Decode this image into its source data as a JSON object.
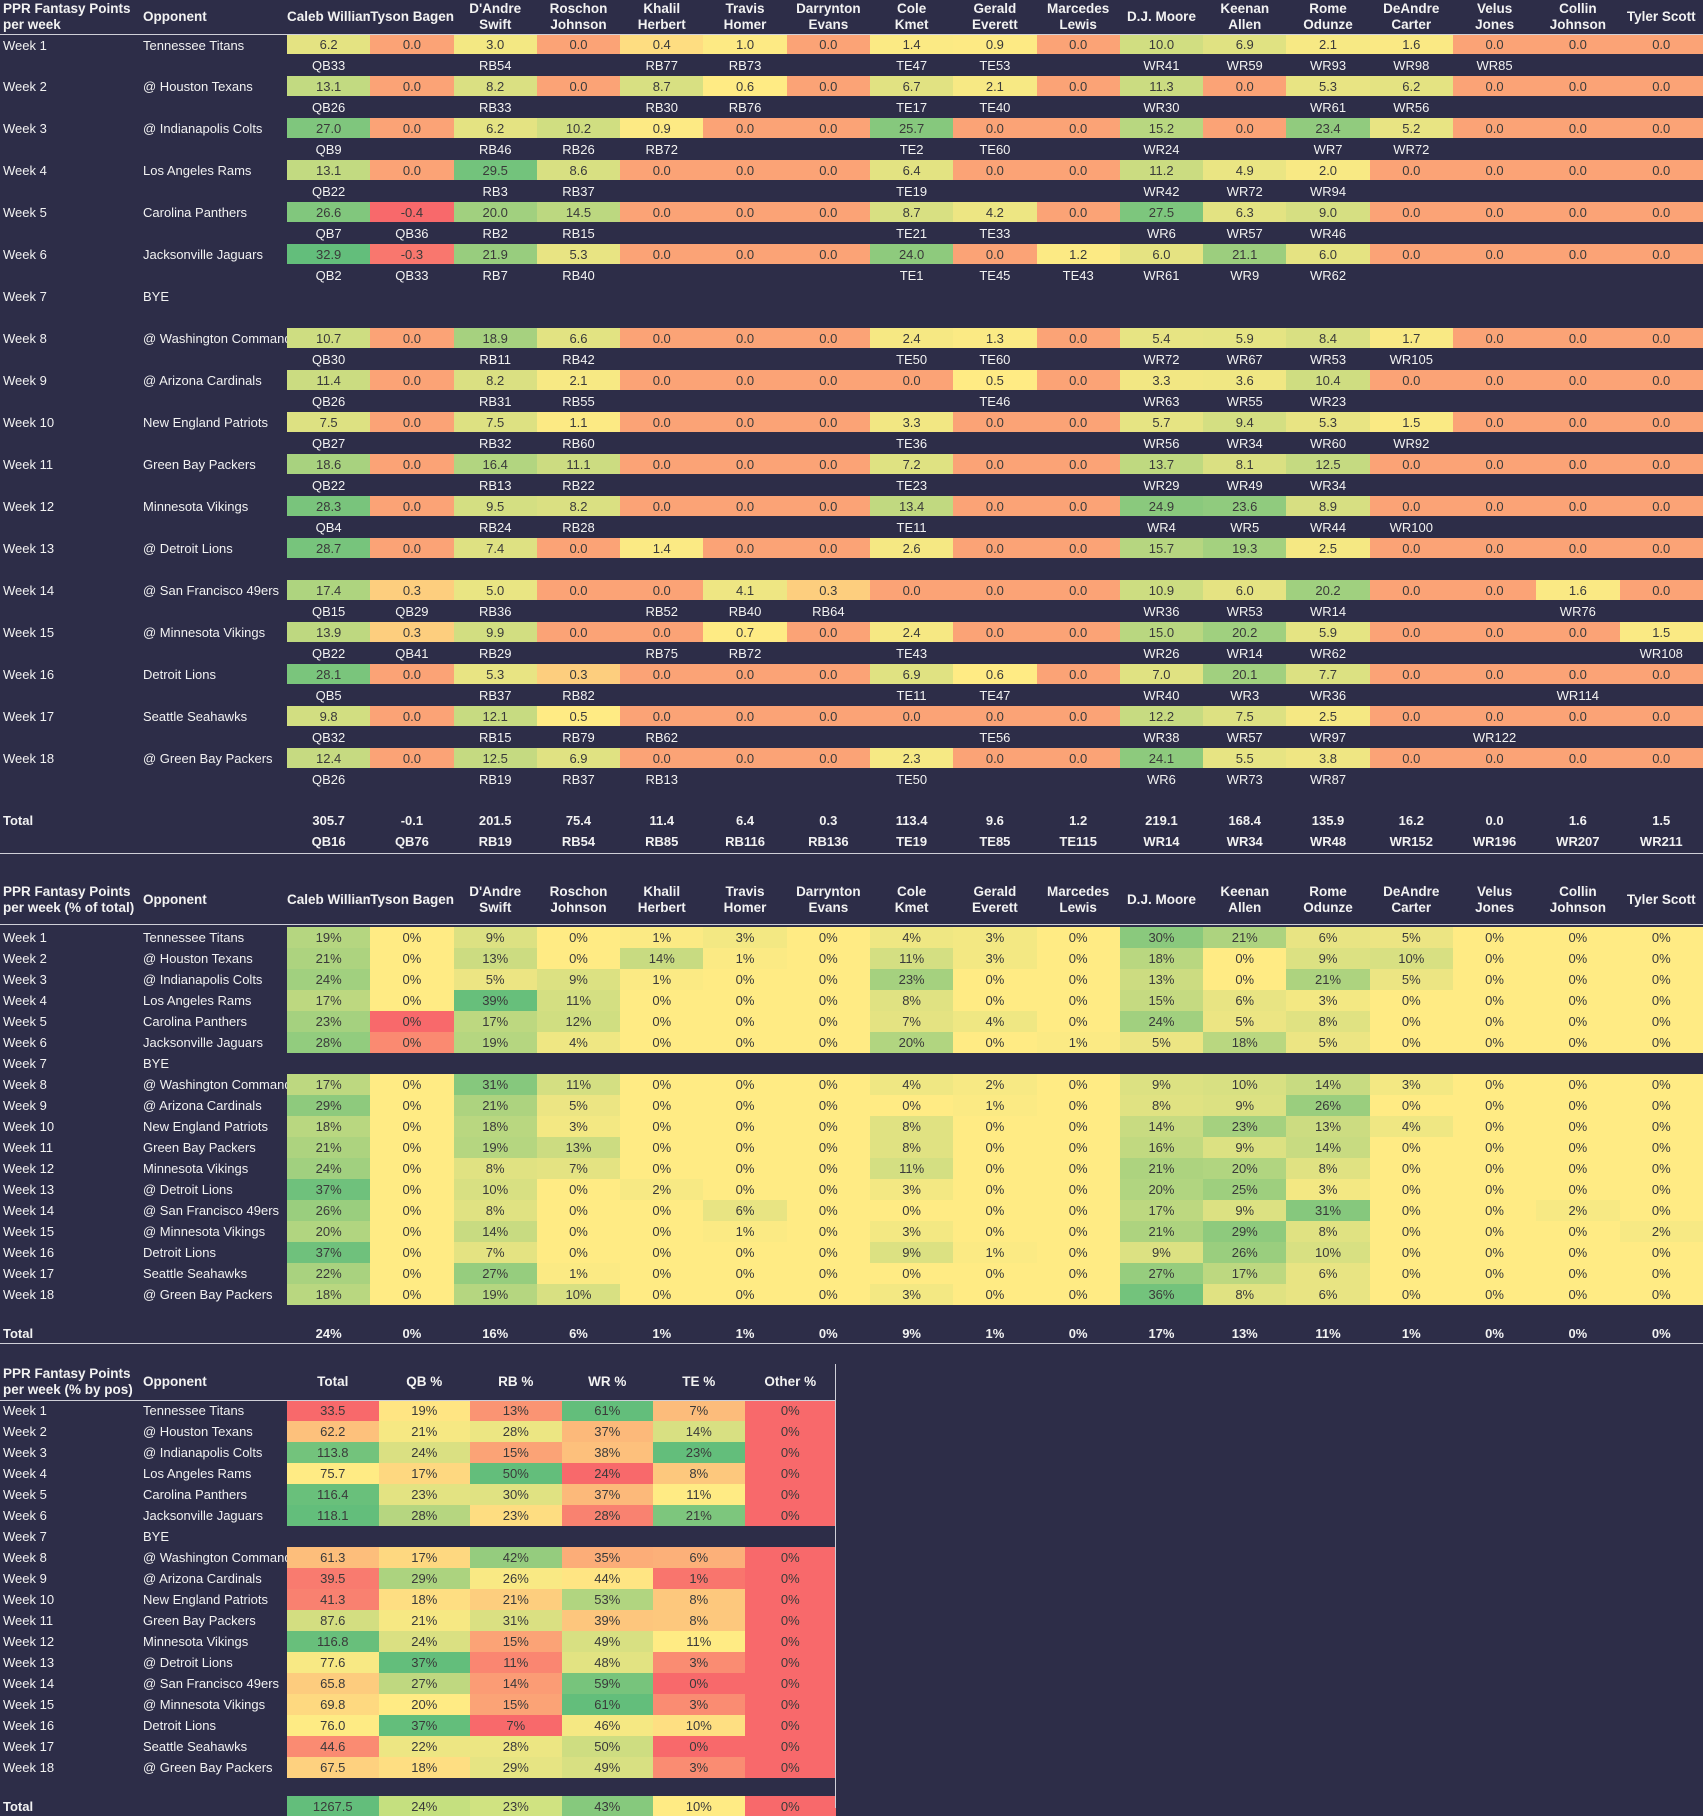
{
  "players": [
    "Caleb Williams",
    "Tyson Bagent",
    "D'Andre Swift",
    "Roschon Johnson",
    "Khalil Herbert",
    "Travis Homer",
    "Darrynton Evans",
    "Cole Kmet",
    "Gerald Everett",
    "Marcedes Lewis",
    "D.J. Moore",
    "Keenan Allen",
    "Rome Odunze",
    "DeAndre Carter",
    "Velus Jones",
    "Collin Johnson",
    "Tyler Scott"
  ],
  "player_header_lines": [
    [
      "Caleb Williams",
      ""
    ],
    [
      "Tyson Bagent",
      ""
    ],
    [
      "D'Andre",
      "Swift"
    ],
    [
      "Roschon",
      "Johnson"
    ],
    [
      "Khalil",
      "Herbert"
    ],
    [
      "Travis",
      "Homer"
    ],
    [
      "Darrynton",
      "Evans"
    ],
    [
      "Cole",
      "Kmet"
    ],
    [
      "Gerald",
      "Everett"
    ],
    [
      "Marcedes",
      "Lewis"
    ],
    [
      "D.J. Moore",
      ""
    ],
    [
      "Keenan",
      "Allen"
    ],
    [
      "Rome",
      "Odunze"
    ],
    [
      "DeAndre",
      "Carter"
    ],
    [
      "Velus",
      "Jones"
    ],
    [
      "Collin",
      "Johnson"
    ],
    [
      "Tyler Scott",
      ""
    ]
  ],
  "opponent_label": "Opponent",
  "weeks": [
    "Week 1",
    "Week 2",
    "Week 3",
    "Week 4",
    "Week 5",
    "Week 6",
    "Week 7",
    "Week 8",
    "Week 9",
    "Week 10",
    "Week 11",
    "Week 12",
    "Week 13",
    "Week 14",
    "Week 15",
    "Week 16",
    "Week 17",
    "Week 18"
  ],
  "opponents": [
    "Tennessee Titans",
    "@ Houston Texans",
    "@ Indianapolis Colts",
    "Los Angeles Rams",
    "Carolina Panthers",
    "Jacksonville Jaguars",
    "BYE",
    "@ Washington Commanders",
    "@ Arizona Cardinals",
    "New England Patriots",
    "Green Bay Packers",
    "Minnesota Vikings",
    "@ Detroit Lions",
    "@ San Francisco 49ers",
    "@ Minnesota Vikings",
    "Detroit Lions",
    "Seattle Seahawks",
    "@ Green Bay Packers"
  ],
  "total_label": "Total",
  "table1": {
    "title_lines": [
      "PPR Fantasy Points",
      "per week"
    ],
    "points": [
      [
        "6.2",
        "0.0",
        "3.0",
        "0.0",
        "0.4",
        "1.0",
        "0.0",
        "1.4",
        "0.9",
        "0.0",
        "10.0",
        "6.9",
        "2.1",
        "1.6",
        "0.0",
        "0.0",
        "0.0"
      ],
      [
        "13.1",
        "0.0",
        "8.2",
        "0.0",
        "8.7",
        "0.6",
        "0.0",
        "6.7",
        "2.1",
        "0.0",
        "11.3",
        "0.0",
        "5.3",
        "6.2",
        "0.0",
        "0.0",
        "0.0"
      ],
      [
        "27.0",
        "0.0",
        "6.2",
        "10.2",
        "0.9",
        "0.0",
        "0.0",
        "25.7",
        "0.0",
        "0.0",
        "15.2",
        "0.0",
        "23.4",
        "5.2",
        "0.0",
        "0.0",
        "0.0"
      ],
      [
        "13.1",
        "0.0",
        "29.5",
        "8.6",
        "0.0",
        "0.0",
        "0.0",
        "6.4",
        "0.0",
        "0.0",
        "11.2",
        "4.9",
        "2.0",
        "0.0",
        "0.0",
        "0.0",
        "0.0"
      ],
      [
        "26.6",
        "-0.4",
        "20.0",
        "14.5",
        "0.0",
        "0.0",
        "0.0",
        "8.7",
        "4.2",
        "0.0",
        "27.5",
        "6.3",
        "9.0",
        "0.0",
        "0.0",
        "0.0",
        "0.0"
      ],
      [
        "32.9",
        "-0.3",
        "21.9",
        "5.3",
        "0.0",
        "0.0",
        "0.0",
        "24.0",
        "0.0",
        "1.2",
        "6.0",
        "21.1",
        "6.0",
        "0.0",
        "0.0",
        "0.0",
        "0.0"
      ],
      [
        "",
        "",
        "",
        "",
        "",
        "",
        "",
        "",
        "",
        "",
        "",
        "",
        "",
        "",
        "",
        "",
        ""
      ],
      [
        "10.7",
        "0.0",
        "18.9",
        "6.6",
        "0.0",
        "0.0",
        "0.0",
        "2.4",
        "1.3",
        "0.0",
        "5.4",
        "5.9",
        "8.4",
        "1.7",
        "0.0",
        "0.0",
        "0.0"
      ],
      [
        "11.4",
        "0.0",
        "8.2",
        "2.1",
        "0.0",
        "0.0",
        "0.0",
        "0.0",
        "0.5",
        "0.0",
        "3.3",
        "3.6",
        "10.4",
        "0.0",
        "0.0",
        "0.0",
        "0.0"
      ],
      [
        "7.5",
        "0.0",
        "7.5",
        "1.1",
        "0.0",
        "0.0",
        "0.0",
        "3.3",
        "0.0",
        "0.0",
        "5.7",
        "9.4",
        "5.3",
        "1.5",
        "0.0",
        "0.0",
        "0.0"
      ],
      [
        "18.6",
        "0.0",
        "16.4",
        "11.1",
        "0.0",
        "0.0",
        "0.0",
        "7.2",
        "0.0",
        "0.0",
        "13.7",
        "8.1",
        "12.5",
        "0.0",
        "0.0",
        "0.0",
        "0.0"
      ],
      [
        "28.3",
        "0.0",
        "9.5",
        "8.2",
        "0.0",
        "0.0",
        "0.0",
        "13.4",
        "0.0",
        "0.0",
        "24.9",
        "23.6",
        "8.9",
        "0.0",
        "0.0",
        "0.0",
        "0.0"
      ],
      [
        "28.7",
        "0.0",
        "7.4",
        "0.0",
        "1.4",
        "0.0",
        "0.0",
        "2.6",
        "0.0",
        "0.0",
        "15.7",
        "19.3",
        "2.5",
        "0.0",
        "0.0",
        "0.0",
        "0.0"
      ],
      [
        "17.4",
        "0.3",
        "5.0",
        "0.0",
        "0.0",
        "4.1",
        "0.3",
        "0.0",
        "0.0",
        "0.0",
        "10.9",
        "6.0",
        "20.2",
        "0.0",
        "0.0",
        "1.6",
        "0.0"
      ],
      [
        "13.9",
        "0.3",
        "9.9",
        "0.0",
        "0.0",
        "0.7",
        "0.0",
        "2.4",
        "0.0",
        "0.0",
        "15.0",
        "20.2",
        "5.9",
        "0.0",
        "0.0",
        "0.0",
        "1.5"
      ],
      [
        "28.1",
        "0.0",
        "5.3",
        "0.3",
        "0.0",
        "0.0",
        "0.0",
        "6.9",
        "0.6",
        "0.0",
        "7.0",
        "20.1",
        "7.7",
        "0.0",
        "0.0",
        "0.0",
        "0.0"
      ],
      [
        "9.8",
        "0.0",
        "12.1",
        "0.5",
        "0.0",
        "0.0",
        "0.0",
        "0.0",
        "0.0",
        "0.0",
        "12.2",
        "7.5",
        "2.5",
        "0.0",
        "0.0",
        "0.0",
        "0.0"
      ],
      [
        "12.4",
        "0.0",
        "12.5",
        "6.9",
        "0.0",
        "0.0",
        "0.0",
        "2.3",
        "0.0",
        "0.0",
        "24.1",
        "5.5",
        "3.8",
        "0.0",
        "0.0",
        "0.0",
        "0.0"
      ]
    ],
    "ranks": [
      [
        "QB33",
        "",
        "RB54",
        "",
        "RB77",
        "RB73",
        "",
        "TE47",
        "TE53",
        "",
        "WR41",
        "WR59",
        "WR93",
        "WR98",
        "WR85",
        "",
        ""
      ],
      [
        "QB26",
        "",
        "RB33",
        "",
        "RB30",
        "RB76",
        "",
        "TE17",
        "TE40",
        "",
        "WR30",
        "",
        "WR61",
        "WR56",
        "",
        "",
        ""
      ],
      [
        "QB9",
        "",
        "RB46",
        "RB26",
        "RB72",
        "",
        "",
        "TE2",
        "TE60",
        "",
        "WR24",
        "",
        "WR7",
        "WR72",
        "",
        "",
        ""
      ],
      [
        "QB22",
        "",
        "RB3",
        "RB37",
        "",
        "",
        "",
        "TE19",
        "",
        "",
        "WR42",
        "WR72",
        "WR94",
        "",
        "",
        "",
        ""
      ],
      [
        "QB7",
        "QB36",
        "RB2",
        "RB15",
        "",
        "",
        "",
        "TE21",
        "TE33",
        "",
        "WR6",
        "WR57",
        "WR46",
        "",
        "",
        "",
        ""
      ],
      [
        "QB2",
        "QB33",
        "RB7",
        "RB40",
        "",
        "",
        "",
        "TE1",
        "TE45",
        "TE43",
        "WR61",
        "WR9",
        "WR62",
        "",
        "",
        "",
        ""
      ],
      [
        "",
        "",
        "",
        "",
        "",
        "",
        "",
        "",
        "",
        "",
        "",
        "",
        "",
        "",
        "",
        "",
        ""
      ],
      [
        "QB30",
        "",
        "RB11",
        "RB42",
        "",
        "",
        "",
        "TE50",
        "TE60",
        "",
        "WR72",
        "WR67",
        "WR53",
        "WR105",
        "",
        "",
        ""
      ],
      [
        "QB26",
        "",
        "RB31",
        "RB55",
        "",
        "",
        "",
        "",
        "TE46",
        "",
        "WR63",
        "WR55",
        "WR23",
        "",
        "",
        "",
        ""
      ],
      [
        "QB27",
        "",
        "RB32",
        "RB60",
        "",
        "",
        "",
        "TE36",
        "",
        "",
        "WR56",
        "WR34",
        "WR60",
        "WR92",
        "",
        "",
        ""
      ],
      [
        "QB22",
        "",
        "RB13",
        "RB22",
        "",
        "",
        "",
        "TE23",
        "",
        "",
        "WR29",
        "WR49",
        "WR34",
        "",
        "",
        "",
        ""
      ],
      [
        "QB4",
        "",
        "RB24",
        "RB28",
        "",
        "",
        "",
        "TE11",
        "",
        "",
        "WR4",
        "WR5",
        "WR44",
        "WR100",
        "",
        "",
        ""
      ],
      [
        "",
        "",
        "",
        "",
        "",
        "",
        "",
        "",
        "",
        "",
        "",
        "",
        "",
        "",
        "",
        "",
        ""
      ],
      [
        "QB15",
        "QB29",
        "RB36",
        "",
        "RB52",
        "RB40",
        "RB64",
        "",
        "",
        "",
        "WR36",
        "WR53",
        "WR14",
        "",
        "",
        "WR76",
        ""
      ],
      [
        "QB22",
        "QB41",
        "RB29",
        "",
        "RB75",
        "RB72",
        "",
        "TE43",
        "",
        "",
        "WR26",
        "WR14",
        "WR62",
        "",
        "",
        "",
        "WR108"
      ],
      [
        "QB5",
        "",
        "RB37",
        "RB82",
        "",
        "",
        "",
        "TE11",
        "TE47",
        "",
        "WR40",
        "WR3",
        "WR36",
        "",
        "",
        "WR114",
        ""
      ],
      [
        "QB32",
        "",
        "RB15",
        "RB79",
        "RB62",
        "",
        "",
        "",
        "TE56",
        "",
        "WR38",
        "WR57",
        "WR97",
        "",
        "WR122",
        "",
        ""
      ],
      [
        "QB26",
        "",
        "RB19",
        "RB37",
        "RB13",
        "",
        "",
        "TE50",
        "",
        "",
        "WR6",
        "WR73",
        "WR87",
        "",
        "",
        "",
        ""
      ]
    ],
    "totals": [
      "305.7",
      "-0.1",
      "201.5",
      "75.4",
      "11.4",
      "6.4",
      "0.3",
      "113.4",
      "9.6",
      "1.2",
      "219.1",
      "168.4",
      "135.9",
      "16.2",
      "0.0",
      "1.6",
      "1.5"
    ],
    "total_ranks": [
      "QB16",
      "QB76",
      "RB19",
      "RB54",
      "RB85",
      "RB116",
      "RB136",
      "TE19",
      "TE85",
      "TE115",
      "WR14",
      "WR34",
      "WR48",
      "WR152",
      "WR196",
      "WR207",
      "WR211"
    ]
  },
  "table2": {
    "title_lines": [
      "PPR Fantasy Points",
      "per week (% of total)"
    ],
    "pct": [
      [
        "19%",
        "0%",
        "9%",
        "0%",
        "1%",
        "3%",
        "0%",
        "4%",
        "3%",
        "0%",
        "30%",
        "21%",
        "6%",
        "5%",
        "0%",
        "0%",
        "0%"
      ],
      [
        "21%",
        "0%",
        "13%",
        "0%",
        "14%",
        "1%",
        "0%",
        "11%",
        "3%",
        "0%",
        "18%",
        "0%",
        "9%",
        "10%",
        "0%",
        "0%",
        "0%"
      ],
      [
        "24%",
        "0%",
        "5%",
        "9%",
        "1%",
        "0%",
        "0%",
        "23%",
        "0%",
        "0%",
        "13%",
        "0%",
        "21%",
        "5%",
        "0%",
        "0%",
        "0%"
      ],
      [
        "17%",
        "0%",
        "39%",
        "11%",
        "0%",
        "0%",
        "0%",
        "8%",
        "0%",
        "0%",
        "15%",
        "6%",
        "3%",
        "0%",
        "0%",
        "0%",
        "0%"
      ],
      [
        "23%",
        "0%",
        "17%",
        "12%",
        "0%",
        "0%",
        "0%",
        "7%",
        "4%",
        "0%",
        "24%",
        "5%",
        "8%",
        "0%",
        "0%",
        "0%",
        "0%"
      ],
      [
        "28%",
        "0%",
        "19%",
        "4%",
        "0%",
        "0%",
        "0%",
        "20%",
        "0%",
        "1%",
        "5%",
        "18%",
        "5%",
        "0%",
        "0%",
        "0%",
        "0%"
      ],
      [
        "",
        "",
        "",
        "",
        "",
        "",
        "",
        "",
        "",
        "",
        "",
        "",
        "",
        "",
        "",
        "",
        ""
      ],
      [
        "17%",
        "0%",
        "31%",
        "11%",
        "0%",
        "0%",
        "0%",
        "4%",
        "2%",
        "0%",
        "9%",
        "10%",
        "14%",
        "3%",
        "0%",
        "0%",
        "0%"
      ],
      [
        "29%",
        "0%",
        "21%",
        "5%",
        "0%",
        "0%",
        "0%",
        "0%",
        "1%",
        "0%",
        "8%",
        "9%",
        "26%",
        "0%",
        "0%",
        "0%",
        "0%"
      ],
      [
        "18%",
        "0%",
        "18%",
        "3%",
        "0%",
        "0%",
        "0%",
        "8%",
        "0%",
        "0%",
        "14%",
        "23%",
        "13%",
        "4%",
        "0%",
        "0%",
        "0%"
      ],
      [
        "21%",
        "0%",
        "19%",
        "13%",
        "0%",
        "0%",
        "0%",
        "8%",
        "0%",
        "0%",
        "16%",
        "9%",
        "14%",
        "0%",
        "0%",
        "0%",
        "0%"
      ],
      [
        "24%",
        "0%",
        "8%",
        "7%",
        "0%",
        "0%",
        "0%",
        "11%",
        "0%",
        "0%",
        "21%",
        "20%",
        "8%",
        "0%",
        "0%",
        "0%",
        "0%"
      ],
      [
        "37%",
        "0%",
        "10%",
        "0%",
        "2%",
        "0%",
        "0%",
        "3%",
        "0%",
        "0%",
        "20%",
        "25%",
        "3%",
        "0%",
        "0%",
        "0%",
        "0%"
      ],
      [
        "26%",
        "0%",
        "8%",
        "0%",
        "0%",
        "6%",
        "0%",
        "0%",
        "0%",
        "0%",
        "17%",
        "9%",
        "31%",
        "0%",
        "0%",
        "2%",
        "0%"
      ],
      [
        "20%",
        "0%",
        "14%",
        "0%",
        "0%",
        "1%",
        "0%",
        "3%",
        "0%",
        "0%",
        "21%",
        "29%",
        "8%",
        "0%",
        "0%",
        "0%",
        "2%"
      ],
      [
        "37%",
        "0%",
        "7%",
        "0%",
        "0%",
        "0%",
        "0%",
        "9%",
        "1%",
        "0%",
        "9%",
        "26%",
        "10%",
        "0%",
        "0%",
        "0%",
        "0%"
      ],
      [
        "22%",
        "0%",
        "27%",
        "1%",
        "0%",
        "0%",
        "0%",
        "0%",
        "0%",
        "0%",
        "27%",
        "17%",
        "6%",
        "0%",
        "0%",
        "0%",
        "0%"
      ],
      [
        "18%",
        "0%",
        "19%",
        "10%",
        "0%",
        "0%",
        "0%",
        "3%",
        "0%",
        "0%",
        "36%",
        "8%",
        "6%",
        "0%",
        "0%",
        "0%",
        "0%"
      ]
    ],
    "totals": [
      "24%",
      "0%",
      "16%",
      "6%",
      "1%",
      "1%",
      "0%",
      "9%",
      "1%",
      "0%",
      "17%",
      "13%",
      "11%",
      "1%",
      "0%",
      "0%",
      "0%"
    ]
  },
  "table3": {
    "title_lines": [
      "PPR Fantasy Points",
      "per week (% by pos)"
    ],
    "headers": [
      "Total",
      "QB %",
      "RB %",
      "WR %",
      "TE %",
      "Other %"
    ],
    "rows": [
      [
        "33.5",
        "19%",
        "13%",
        "61%",
        "7%",
        "0%"
      ],
      [
        "62.2",
        "21%",
        "28%",
        "37%",
        "14%",
        "0%"
      ],
      [
        "113.8",
        "24%",
        "15%",
        "38%",
        "23%",
        "0%"
      ],
      [
        "75.7",
        "17%",
        "50%",
        "24%",
        "8%",
        "0%"
      ],
      [
        "116.4",
        "23%",
        "30%",
        "37%",
        "11%",
        "0%"
      ],
      [
        "118.1",
        "28%",
        "23%",
        "28%",
        "21%",
        "0%"
      ],
      [
        "",
        "",
        "",
        "",
        "",
        ""
      ],
      [
        "61.3",
        "17%",
        "42%",
        "35%",
        "6%",
        "0%"
      ],
      [
        "39.5",
        "29%",
        "26%",
        "44%",
        "1%",
        "0%"
      ],
      [
        "41.3",
        "18%",
        "21%",
        "53%",
        "8%",
        "0%"
      ],
      [
        "87.6",
        "21%",
        "31%",
        "39%",
        "8%",
        "0%"
      ],
      [
        "116.8",
        "24%",
        "15%",
        "49%",
        "11%",
        "0%"
      ],
      [
        "77.6",
        "37%",
        "11%",
        "48%",
        "3%",
        "0%"
      ],
      [
        "65.8",
        "27%",
        "14%",
        "59%",
        "0%",
        "0%"
      ],
      [
        "69.8",
        "20%",
        "15%",
        "61%",
        "3%",
        "0%"
      ],
      [
        "76.0",
        "37%",
        "7%",
        "46%",
        "10%",
        "0%"
      ],
      [
        "44.6",
        "22%",
        "28%",
        "50%",
        "0%",
        "0%"
      ],
      [
        "67.5",
        "18%",
        "29%",
        "49%",
        "3%",
        "0%"
      ]
    ],
    "totals": [
      "1267.5",
      "24%",
      "23%",
      "43%",
      "10%",
      "0%"
    ]
  },
  "colors": {
    "background": "#2d2d48",
    "low": "#f8696b",
    "mid": "#ffeb84",
    "high": "#63be7b"
  }
}
